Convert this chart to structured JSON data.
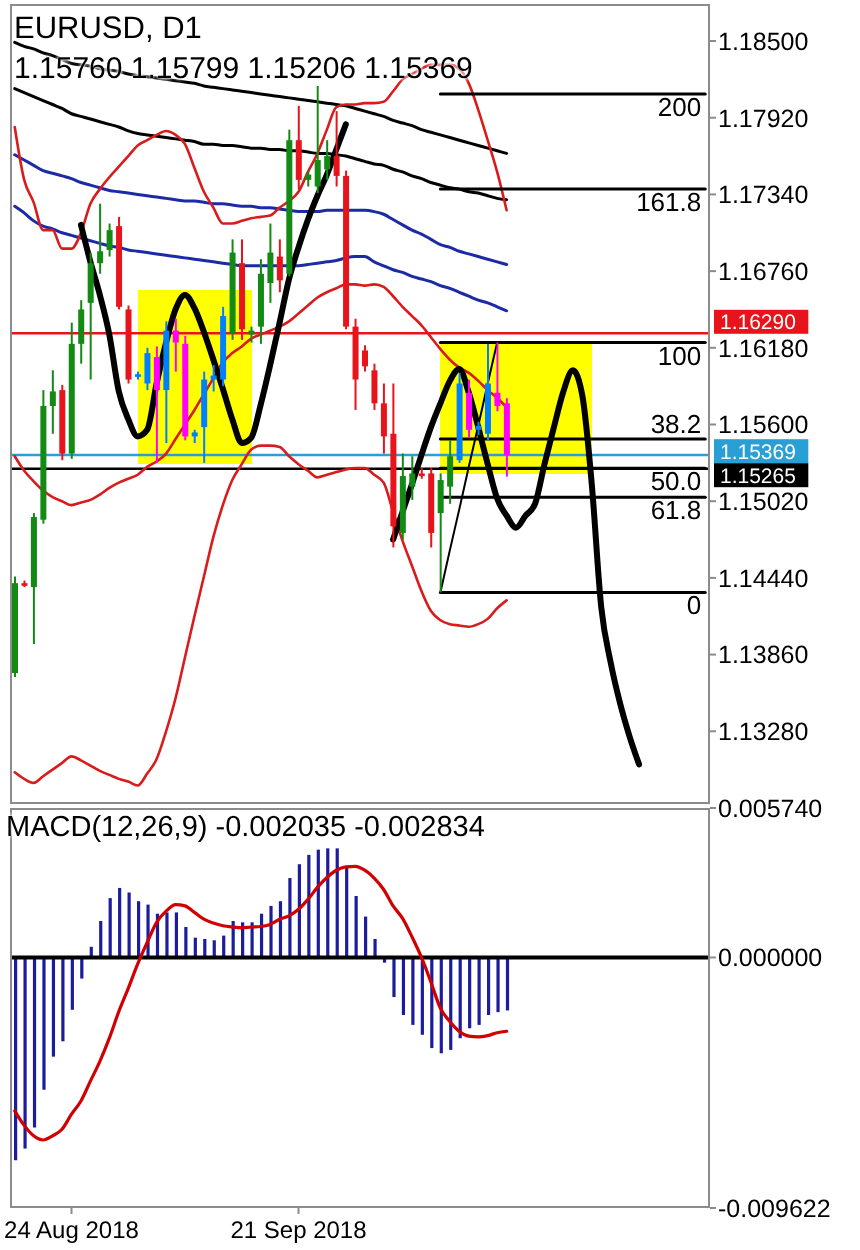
{
  "chart_data": [
    {
      "type": "candlestick",
      "title": "EURUSD, D1",
      "subtitle": "1.15760 1.15799 1.15206 1.15369",
      "categories": [
        null,
        null,
        null,
        null,
        null,
        null,
        null,
        null,
        null,
        null,
        null,
        null,
        null,
        null,
        null,
        null,
        null,
        null,
        null,
        null,
        null,
        null,
        null,
        null,
        null,
        null,
        null,
        null,
        null,
        null,
        null,
        null,
        null,
        null,
        null,
        null,
        null,
        null,
        null,
        null,
        null,
        null,
        null,
        null,
        null,
        null,
        null,
        null,
        null,
        null,
        null,
        null,
        null,
        null,
        null,
        null,
        null,
        null,
        null,
        null,
        null,
        null,
        null,
        null,
        null,
        null,
        null,
        null,
        null,
        null,
        null,
        null,
        null,
        null
      ],
      "ohlc": [
        [
          1.1372,
          1.1445,
          1.1369,
          1.144
        ],
        [
          1.144,
          1.1442,
          1.1437,
          1.1438
        ],
        [
          1.1437,
          1.1493,
          1.1394,
          1.149
        ],
        [
          1.1488,
          1.1586,
          1.1485,
          1.1574
        ],
        [
          1.1574,
          1.1601,
          1.1553,
          1.1585
        ],
        [
          1.1586,
          1.159,
          1.1533,
          1.1538
        ],
        [
          1.1538,
          1.1637,
          1.1534,
          1.1621
        ],
        [
          1.1621,
          1.1654,
          1.1606,
          1.1647
        ],
        [
          1.1652,
          1.169,
          1.1594,
          1.1682
        ],
        [
          1.1682,
          1.1727,
          1.1674,
          1.1691
        ],
        [
          1.1692,
          1.1712,
          1.1687,
          1.1707
        ],
        [
          1.171,
          1.1717,
          1.1647,
          1.1649
        ],
        [
          1.1647,
          1.165,
          1.1591,
          1.1594
        ],
        [
          1.1596,
          1.16,
          1.1594,
          1.1598
        ],
        [
          1.1591,
          1.1618,
          1.1586,
          1.1614
        ],
        [
          1.1611,
          1.1619,
          1.1531,
          1.1586
        ],
        [
          1.1586,
          1.1638,
          1.1546,
          1.1631
        ],
        [
          1.1631,
          1.164,
          1.16,
          1.1622
        ],
        [
          1.1621,
          1.1627,
          1.1548,
          1.1551
        ],
        [
          1.1551,
          1.1556,
          1.1546,
          1.1554
        ],
        [
          1.1558,
          1.16,
          1.1531,
          1.1594
        ],
        [
          1.1594,
          1.1605,
          1.1585,
          1.1597
        ],
        [
          1.1594,
          1.1649,
          1.1589,
          1.1642
        ],
        [
          1.1629,
          1.17,
          1.1624,
          1.169
        ],
        [
          1.1682,
          1.17,
          1.1624,
          1.1632
        ],
        [
          1.1628,
          1.1634,
          1.1622,
          1.1631
        ],
        [
          1.1634,
          1.1685,
          1.1621,
          1.1674
        ],
        [
          1.1667,
          1.1712,
          1.1652,
          1.169
        ],
        [
          1.1687,
          1.17,
          1.166,
          1.1669
        ],
        [
          1.1674,
          1.1783,
          1.1672,
          1.1775
        ],
        [
          1.1775,
          1.1801,
          1.1738,
          1.1745
        ],
        [
          1.1745,
          1.1752,
          1.174,
          1.1749
        ],
        [
          1.174,
          1.1816,
          1.1735,
          1.176
        ],
        [
          1.1753,
          1.1775,
          1.1745,
          1.1763
        ],
        [
          1.1763,
          1.1797,
          1.174,
          1.1748
        ],
        [
          1.1748,
          1.1752,
          1.1632,
          1.1634
        ],
        [
          1.1634,
          1.164,
          1.1571,
          1.1594
        ],
        [
          1.1616,
          1.162,
          1.16,
          1.1604
        ],
        [
          1.1601,
          1.1606,
          1.1571,
          1.1576
        ],
        [
          1.1576,
          1.1591,
          1.1538,
          1.1551
        ],
        [
          1.1553,
          1.1591,
          1.1467,
          1.1483
        ],
        [
          1.1478,
          1.1538,
          1.1473,
          1.1521
        ],
        [
          1.1513,
          1.1536,
          1.1503,
          1.1523
        ],
        [
          1.1523,
          1.1527,
          1.1519,
          1.1521
        ],
        [
          1.1523,
          1.1527,
          1.1467,
          1.1478
        ],
        [
          1.1493,
          1.1523,
          1.1433,
          1.1518
        ],
        [
          1.1513,
          1.1548,
          1.15,
          1.1536
        ],
        [
          1.1533,
          1.1599,
          1.1531,
          1.1591
        ],
        [
          1.1584,
          1.1594,
          1.155,
          1.1556
        ],
        [
          1.1556,
          1.1562,
          1.1552,
          1.1559
        ],
        [
          1.1553,
          1.1621,
          1.1548,
          1.1591
        ],
        [
          1.1584,
          1.1622,
          1.157,
          1.1574
        ],
        [
          1.1576,
          1.15799,
          1.15206,
          1.15369
        ],
        null,
        null,
        null,
        null,
        null,
        null,
        null,
        null,
        null,
        null,
        null,
        null,
        null,
        null,
        null,
        null,
        null,
        null,
        null,
        null,
        null
      ],
      "colors": [
        "#138a13",
        "#e8141c",
        "#138a13",
        "#138a13",
        "#138a13",
        "#e8141c",
        "#138a13",
        "#138a13",
        "#138a13",
        "#138a13",
        "#138a13",
        "#e8141c",
        "#e8141c",
        "#0080ff",
        "#0080ff",
        "#ff00ff",
        "#0080ff",
        "#ff00ff",
        "#ff00ff",
        "#0080ff",
        "#0080ff",
        "#0080ff",
        "#0080ff",
        "#138a13",
        "#e8141c",
        "#138a13",
        "#138a13",
        "#138a13",
        "#e8141c",
        "#138a13",
        "#e8141c",
        "#138a13",
        "#138a13",
        "#138a13",
        "#e8141c",
        "#e8141c",
        "#e8141c",
        "#e8141c",
        "#e8141c",
        "#e8141c",
        "#e8141c",
        "#138a13",
        "#138a13",
        "#e8141c",
        "#e8141c",
        "#138a13",
        "#138a13",
        "#0080ff",
        "#ff00ff",
        "#0080ff",
        "#0080ff",
        "#ff00ff",
        "#ff00ff",
        null,
        null,
        null,
        null,
        null,
        null,
        null,
        null,
        null,
        null,
        null,
        null,
        null,
        null,
        null,
        null,
        null,
        null,
        null,
        null,
        null
      ],
      "ylim": [
        1.1273,
        1.1878
      ],
      "yticks": [
        {
          "value": 1.185,
          "label": "1.18500"
        },
        {
          "value": 1.1792,
          "label": "1.17920"
        },
        {
          "value": 1.1734,
          "label": "1.17340"
        },
        {
          "value": 1.1676,
          "label": "1.16760"
        },
        {
          "value": 1.1618,
          "label": "1.16180"
        },
        {
          "value": 1.156,
          "label": "1.15600"
        },
        {
          "value": 1.1502,
          "label": "1.15020"
        },
        {
          "value": 1.1444,
          "label": "1.14440"
        },
        {
          "value": 1.1386,
          "label": "1.13860"
        },
        {
          "value": 1.1328,
          "label": "1.13280"
        }
      ],
      "ref_lines": [
        {
          "axis": "y",
          "value": 1.1629,
          "label": "1.16290",
          "color": "#e8141c"
        },
        {
          "axis": "y",
          "value": 1.15369,
          "label": "1.15369",
          "color": "#2a9fd6"
        },
        {
          "axis": "y",
          "value": 1.15265,
          "label": "1.15265",
          "color": "#000000"
        }
      ],
      "series": [
        {
          "type": "line",
          "color": "#000000",
          "values": [
            1.1849,
            1.1846,
            1.1844,
            1.1841,
            1.1839,
            1.1836,
            1.1833,
            1.1832,
            1.1831,
            1.1829,
            1.1828,
            1.1827,
            1.1825,
            1.1824,
            1.1823,
            1.1822,
            1.1821,
            1.182,
            1.1819,
            1.1818,
            1.1816,
            1.1815,
            1.1814,
            1.1813,
            1.1812,
            1.1811,
            1.181,
            1.1809,
            1.1808,
            1.1807,
            1.1806,
            1.1805,
            1.1804,
            1.1803,
            1.1802,
            1.1801,
            1.1799,
            1.1797,
            1.1795,
            1.1793,
            1.179,
            1.1788,
            1.1786,
            1.1783,
            1.1781,
            1.1779,
            1.1777,
            1.1775,
            1.1773,
            1.1771,
            1.1769,
            1.1767,
            1.1765,
            null,
            null,
            null,
            null,
            null,
            null,
            null,
            null,
            null,
            null,
            null,
            null,
            null,
            null,
            null,
            null,
            null,
            null,
            null,
            null,
            null
          ]
        },
        {
          "type": "line",
          "color": "#000000",
          "values": [
            1.1814,
            1.1811,
            1.1808,
            1.1805,
            1.1802,
            1.1799,
            1.1795,
            1.1793,
            1.1791,
            1.1789,
            1.1787,
            1.1785,
            1.1782,
            1.178,
            1.1779,
            1.1778,
            1.1777,
            1.1776,
            1.1775,
            1.1774,
            1.1772,
            1.1772,
            1.1771,
            1.1771,
            1.177,
            1.1769,
            1.1769,
            1.1768,
            1.1768,
            1.1767,
            1.1767,
            1.1766,
            1.1765,
            1.1765,
            1.1764,
            1.1763,
            1.1761,
            1.1759,
            1.1757,
            1.1756,
            1.1753,
            1.1751,
            1.1748,
            1.1746,
            1.1743,
            1.1741,
            1.1739,
            1.1738,
            1.1736,
            1.1735,
            1.1733,
            1.1731,
            1.173,
            null,
            null,
            null,
            null,
            null,
            null,
            null,
            null,
            null,
            null,
            null,
            null,
            null,
            null,
            null,
            null,
            null,
            null,
            null,
            null,
            null
          ]
        },
        {
          "type": "line",
          "color": "#1c2aa6",
          "values": [
            1.1764,
            1.176,
            1.1756,
            1.1752,
            1.175,
            1.1748,
            1.1746,
            1.1743,
            1.1741,
            1.1739,
            1.1737,
            1.1736,
            1.1735,
            1.1734,
            1.1733,
            1.1732,
            1.1731,
            1.173,
            1.1729,
            1.1729,
            1.1728,
            1.1727,
            1.1727,
            1.1726,
            1.1725,
            1.1725,
            1.1724,
            1.1724,
            1.1723,
            1.1722,
            1.1721,
            1.1721,
            1.1721,
            1.1722,
            1.1722,
            1.1722,
            1.1722,
            1.1722,
            1.1721,
            1.1719,
            1.1715,
            1.1711,
            1.1707,
            1.1704,
            1.17,
            1.1696,
            1.1694,
            1.1691,
            1.1689,
            1.1687,
            1.1685,
            1.1683,
            1.1681,
            null,
            null,
            null,
            null,
            null,
            null,
            null,
            null,
            null,
            null,
            null,
            null,
            null,
            null,
            null,
            null,
            null,
            null,
            null,
            null,
            null
          ]
        },
        {
          "type": "line",
          "color": "#1c2aa6",
          "values": [
            1.1725,
            1.172,
            1.1714,
            1.171,
            1.1708,
            1.1705,
            1.1703,
            1.1701,
            1.1699,
            1.1697,
            1.1695,
            1.1694,
            1.1692,
            1.1691,
            1.169,
            1.1689,
            1.1688,
            1.1687,
            1.1686,
            1.1685,
            1.1684,
            1.1683,
            1.1682,
            1.1681,
            1.168,
            1.168,
            1.168,
            1.168,
            1.168,
            1.168,
            1.168,
            1.1681,
            1.1682,
            1.1683,
            1.1684,
            1.1686,
            1.1687,
            1.1687,
            1.1683,
            1.168,
            1.1677,
            1.1675,
            1.1672,
            1.167,
            1.1668,
            1.1665,
            1.1663,
            1.166,
            1.1657,
            1.1654,
            1.1652,
            1.1649,
            1.1646,
            null,
            null,
            null,
            null,
            null,
            null,
            null,
            null,
            null,
            null,
            null,
            null,
            null,
            null,
            null,
            null,
            null,
            null,
            null,
            null,
            null
          ]
        },
        {
          "type": "line",
          "color": "#d81b1b",
          "values": [
            1.1785,
            1.1745,
            1.1728,
            1.1707,
            1.1707,
            1.1693,
            1.1693,
            1.1705,
            1.1727,
            1.1738,
            1.1747,
            1.1755,
            1.1763,
            1.1771,
            1.1775,
            1.1779,
            1.1782,
            1.1779,
            1.1772,
            1.1754,
            1.1736,
            1.1724,
            1.1712,
            1.1712,
            1.1714,
            1.1716,
            1.1717,
            1.1718,
            1.1724,
            1.1729,
            1.1736,
            1.1751,
            1.1765,
            1.1783,
            1.18,
            1.1802,
            1.1802,
            1.1803,
            1.1803,
            1.1804,
            1.1812,
            1.1821,
            1.1825,
            1.1829,
            1.1832,
            1.1832,
            1.1832,
            1.1829,
            1.1818,
            1.1798,
            1.1775,
            1.1751,
            1.1722,
            null,
            null,
            null,
            null,
            null,
            null,
            null,
            null,
            null,
            null,
            null,
            null,
            null,
            null,
            null,
            null,
            null,
            null,
            null,
            null,
            null
          ]
        },
        {
          "type": "line",
          "color": "#d81b1b",
          "values": [
            1.1536,
            1.1525,
            1.1517,
            1.151,
            1.1505,
            1.1502,
            1.1499,
            1.1501,
            1.1503,
            1.1507,
            1.1512,
            1.1516,
            1.1519,
            1.1522,
            1.1528,
            1.1532,
            1.1538,
            1.1549,
            1.156,
            1.1571,
            1.1583,
            1.1595,
            1.1607,
            1.1614,
            1.1619,
            1.1625,
            1.1628,
            1.1631,
            1.1634,
            1.1638,
            1.1644,
            1.165,
            1.1656,
            1.166,
            1.1663,
            1.1666,
            1.1666,
            1.1665,
            1.1666,
            1.1664,
            1.1657,
            1.1649,
            1.1642,
            1.1635,
            1.1626,
            1.1617,
            1.1609,
            1.1603,
            1.1599,
            1.1593,
            1.1586,
            1.158,
            1.1573,
            null,
            null,
            null,
            null,
            null,
            null,
            null,
            null,
            null,
            null,
            null,
            null,
            null,
            null,
            null,
            null,
            null,
            null,
            null,
            null,
            null
          ]
        },
        {
          "type": "line",
          "color": "#d81b1b",
          "values": [
            1.1297,
            1.1292,
            1.1289,
            1.1294,
            1.1299,
            1.1304,
            1.1309,
            1.1306,
            1.1302,
            1.1298,
            1.1295,
            1.1292,
            1.129,
            1.1287,
            1.1296,
            1.1307,
            1.1328,
            1.1353,
            1.1384,
            1.1415,
            1.1445,
            1.1475,
            1.1499,
            1.1518,
            1.153,
            1.1541,
            1.1544,
            1.1544,
            1.1543,
            1.1536,
            1.153,
            1.1525,
            1.152,
            1.1522,
            1.1524,
            1.1526,
            1.1527,
            1.1527,
            1.1522,
            1.1516,
            1.1494,
            1.1472,
            1.1453,
            1.1434,
            1.1419,
            1.1412,
            1.1409,
            1.1408,
            1.1407,
            1.1409,
            1.1413,
            1.1421,
            1.1427,
            null,
            null,
            null,
            null,
            null,
            null,
            null,
            null,
            null,
            null,
            null,
            null,
            null,
            null,
            null,
            null,
            null,
            null,
            null,
            null,
            null
          ]
        },
        {
          "type": "line",
          "name": "200",
          "color": "#000000",
          "values": [
            null,
            null,
            null,
            null,
            null,
            null,
            null,
            null,
            null,
            null,
            null,
            null,
            null,
            null,
            null,
            null,
            null,
            null,
            null,
            null,
            null,
            null,
            null,
            null,
            null,
            null,
            null,
            null,
            null,
            null,
            null,
            null,
            null,
            null,
            null,
            null,
            null,
            null,
            null,
            null,
            null,
            null,
            null,
            null,
            null,
            1.181,
            1.181,
            1.181,
            1.181,
            1.181,
            1.181,
            1.181,
            1.181,
            1.181,
            1.181,
            1.181,
            1.181,
            1.181,
            1.181,
            1.181,
            1.181,
            1.181,
            1.181,
            1.181,
            1.181,
            1.181,
            1.181,
            1.181,
            1.181,
            1.181,
            1.181,
            1.181,
            1.181,
            1.181
          ]
        },
        {
          "type": "line",
          "name": "161.8",
          "color": "#000000",
          "values": [
            null,
            null,
            null,
            null,
            null,
            null,
            null,
            null,
            null,
            null,
            null,
            null,
            null,
            null,
            null,
            null,
            null,
            null,
            null,
            null,
            null,
            null,
            null,
            null,
            null,
            null,
            null,
            null,
            null,
            null,
            null,
            null,
            null,
            null,
            null,
            null,
            null,
            null,
            null,
            null,
            null,
            null,
            null,
            null,
            null,
            1.1738,
            1.1738,
            1.1738,
            1.1738,
            1.1738,
            1.1738,
            1.1738,
            1.1738,
            1.1738,
            1.1738,
            1.1738,
            1.1738,
            1.1738,
            1.1738,
            1.1738,
            1.1738,
            1.1738,
            1.1738,
            1.1738,
            1.1738,
            1.1738,
            1.1738,
            1.1738,
            1.1738,
            1.1738,
            1.1738,
            1.1738,
            1.1738,
            1.1738
          ]
        },
        {
          "type": "line",
          "name": "100",
          "color": "#000000",
          "values": [
            null,
            null,
            null,
            null,
            null,
            null,
            null,
            null,
            null,
            null,
            null,
            null,
            null,
            null,
            null,
            null,
            null,
            null,
            null,
            null,
            null,
            null,
            null,
            null,
            null,
            null,
            null,
            null,
            null,
            null,
            null,
            null,
            null,
            null,
            null,
            null,
            null,
            null,
            null,
            null,
            null,
            null,
            null,
            null,
            null,
            1.1622,
            1.1622,
            1.1622,
            1.1622,
            1.1622,
            1.1622,
            1.1622,
            1.1622,
            1.1622,
            1.1622,
            1.1622,
            1.1622,
            1.1622,
            1.1622,
            1.1622,
            1.1622,
            1.1622,
            1.1622,
            1.1622,
            1.1622,
            1.1622,
            1.1622,
            1.1622,
            1.1622,
            1.1622,
            1.1622,
            1.1622,
            1.1622,
            1.1622
          ]
        },
        {
          "type": "line",
          "name": "38.2",
          "color": "#000000",
          "values": [
            null,
            null,
            null,
            null,
            null,
            null,
            null,
            null,
            null,
            null,
            null,
            null,
            null,
            null,
            null,
            null,
            null,
            null,
            null,
            null,
            null,
            null,
            null,
            null,
            null,
            null,
            null,
            null,
            null,
            null,
            null,
            null,
            null,
            null,
            null,
            null,
            null,
            null,
            null,
            null,
            null,
            null,
            null,
            null,
            null,
            1.1549,
            1.1549,
            1.1549,
            1.1549,
            1.1549,
            1.1549,
            1.1549,
            1.1549,
            1.1549,
            1.1549,
            1.1549,
            1.1549,
            1.1549,
            1.1549,
            1.1549,
            1.1549,
            1.1549,
            1.1549,
            1.1549,
            1.1549,
            1.1549,
            1.1549,
            1.1549,
            1.1549,
            1.1549,
            1.1549,
            1.1549,
            1.1549,
            1.1549
          ]
        },
        {
          "type": "line",
          "name": "50.0",
          "color": "#000000",
          "values": [
            null,
            null,
            null,
            null,
            null,
            null,
            null,
            null,
            null,
            null,
            null,
            null,
            null,
            null,
            null,
            null,
            null,
            null,
            null,
            null,
            null,
            null,
            null,
            null,
            null,
            null,
            null,
            null,
            null,
            null,
            null,
            null,
            null,
            null,
            null,
            null,
            null,
            null,
            null,
            null,
            null,
            null,
            null,
            null,
            null,
            1.1527,
            1.1527,
            1.1527,
            1.1527,
            1.1527,
            1.1527,
            1.1527,
            1.1527,
            1.1527,
            1.1527,
            1.1527,
            1.1527,
            1.1527,
            1.1527,
            1.1527,
            1.1527,
            1.1527,
            1.1527,
            1.1527,
            1.1527,
            1.1527,
            1.1527,
            1.1527,
            1.1527,
            1.1527,
            1.1527,
            1.1527,
            1.1527,
            1.1527
          ]
        },
        {
          "type": "line",
          "name": "61.8",
          "color": "#000000",
          "values": [
            null,
            null,
            null,
            null,
            null,
            null,
            null,
            null,
            null,
            null,
            null,
            null,
            null,
            null,
            null,
            null,
            null,
            null,
            null,
            null,
            null,
            null,
            null,
            null,
            null,
            null,
            null,
            null,
            null,
            null,
            null,
            null,
            null,
            null,
            null,
            null,
            null,
            null,
            null,
            null,
            null,
            null,
            null,
            null,
            null,
            1.1505,
            1.1505,
            1.1505,
            1.1505,
            1.1505,
            1.1505,
            1.1505,
            1.1505,
            1.1505,
            1.1505,
            1.1505,
            1.1505,
            1.1505,
            1.1505,
            1.1505,
            1.1505,
            1.1505,
            1.1505,
            1.1505,
            1.1505,
            1.1505,
            1.1505,
            1.1505,
            1.1505,
            1.1505,
            1.1505,
            1.1505,
            1.1505,
            1.1505
          ]
        },
        {
          "type": "line",
          "name": "0",
          "color": "#000000",
          "values": [
            null,
            null,
            null,
            null,
            null,
            null,
            null,
            null,
            null,
            null,
            null,
            null,
            null,
            null,
            null,
            null,
            null,
            null,
            null,
            null,
            null,
            null,
            null,
            null,
            null,
            null,
            null,
            null,
            null,
            null,
            null,
            null,
            null,
            null,
            null,
            null,
            null,
            null,
            null,
            null,
            null,
            null,
            null,
            null,
            null,
            1.1433,
            1.1433,
            1.1433,
            1.1433,
            1.1433,
            1.1433,
            1.1433,
            1.1433,
            1.1433,
            1.1433,
            1.1433,
            1.1433,
            1.1433,
            1.1433,
            1.1433,
            1.1433,
            1.1433,
            1.1433,
            1.1433,
            1.1433,
            1.1433,
            1.1433,
            1.1433,
            1.1433,
            1.1433,
            1.1433,
            1.1433,
            1.1433,
            1.1433
          ]
        },
        {
          "type": "line",
          "color": "#000000",
          "values": [
            null,
            null,
            null,
            null,
            null,
            null,
            null,
            null,
            null,
            null,
            null,
            null,
            null,
            null,
            null,
            null,
            null,
            null,
            null,
            null,
            null,
            null,
            null,
            null,
            null,
            null,
            null,
            null,
            null,
            null,
            null,
            null,
            null,
            null,
            null,
            null,
            null,
            null,
            null,
            null,
            null,
            null,
            null,
            null,
            null,
            1.1433,
            1.1465,
            1.1496,
            1.1528,
            1.1559,
            1.1591,
            1.1622,
            null,
            null,
            null,
            null,
            null,
            null,
            null,
            null,
            null,
            null,
            null,
            null,
            null,
            null,
            null,
            null,
            null,
            null,
            null,
            null,
            null,
            null
          ]
        },
        {
          "type": "line",
          "color": "#000000",
          "values": [
            null,
            null,
            null,
            null,
            null,
            null,
            null,
            1.1711,
            1.1683,
            1.1658,
            1.1628,
            1.1585,
            1.1564,
            1.1551,
            1.1556,
            1.1591,
            1.1622,
            1.1647,
            1.1658,
            1.1648,
            1.163,
            1.1609,
            1.1587,
            1.1564,
            1.1546,
            1.155,
            1.1575,
            1.1605,
            1.1637,
            1.167,
            1.1694,
            1.1715,
            1.1733,
            1.1749,
            1.1768,
            1.1787,
            null,
            null,
            null,
            null,
            null,
            null,
            null,
            null,
            null,
            null,
            null,
            null,
            null,
            null,
            null,
            null,
            null,
            null,
            null,
            null,
            null,
            null,
            null,
            null,
            null,
            null,
            null,
            null,
            null,
            null,
            null,
            null,
            null,
            null,
            null,
            null,
            null,
            null
          ]
        },
        {
          "type": "line",
          "color": "#000000",
          "values": [
            null,
            null,
            null,
            null,
            null,
            null,
            null,
            null,
            null,
            null,
            null,
            null,
            null,
            null,
            null,
            null,
            null,
            null,
            null,
            null,
            null,
            null,
            null,
            null,
            null,
            null,
            null,
            null,
            null,
            null,
            null,
            null,
            null,
            null,
            null,
            null,
            null,
            null,
            null,
            null,
            1.1473,
            1.1494,
            1.1515,
            1.1537,
            1.1558,
            1.1576,
            1.1593,
            1.1602,
            1.1584,
            1.1558,
            1.153,
            1.1504,
            1.1491,
            1.1482,
            1.1491,
            1.15,
            1.153,
            1.1558,
            1.1585,
            1.1601,
            1.1582,
            1.1515,
            1.1422,
            1.138,
            1.1349,
            1.1324,
            1.1303,
            null,
            null,
            null,
            null,
            null,
            null,
            null
          ]
        }
      ]
    },
    {
      "type": "bar",
      "title": "MACD(12,26,9) -0.002035 -0.002834",
      "categories": [
        null,
        null,
        null,
        null,
        null,
        null,
        "24 Aug 2018",
        null,
        null,
        null,
        null,
        null,
        null,
        null,
        null,
        null,
        null,
        null,
        null,
        null,
        null,
        null,
        null,
        null,
        null,
        null,
        null,
        null,
        null,
        null,
        "21 Sep 2018",
        null,
        null,
        null,
        null,
        null,
        null,
        null,
        null,
        null,
        null,
        null,
        null,
        null,
        null,
        null,
        null,
        null,
        null,
        null,
        null,
        null,
        null,
        null,
        null,
        null,
        null,
        null,
        null,
        null,
        null,
        null,
        null,
        null,
        null,
        null,
        null,
        null,
        null,
        null,
        null,
        null,
        null,
        null
      ],
      "ylim": [
        -0.009622,
        0.00574
      ],
      "yticks": [
        {
          "value": 0.00574,
          "label": "0.005740"
        },
        {
          "value": 0,
          "label": "0.000000"
        },
        {
          "value": -0.009622,
          "label": "-0.009622"
        }
      ],
      "ref_lines": [
        {
          "axis": "y",
          "value": 0,
          "color": "#000000"
        }
      ],
      "series": [
        {
          "type": "bar",
          "color": "#1c1c9c",
          "values": [
            -0.00779,
            -0.00734,
            -0.00653,
            -0.00508,
            -0.00381,
            -0.00322,
            -0.00201,
            -0.00081,
            0.00041,
            0.0014,
            0.00228,
            0.00267,
            0.00249,
            0.00216,
            0.00203,
            0.00168,
            0.00173,
            0.00173,
            0.00117,
            0.00076,
            0.00071,
            0.00066,
            0.00084,
            0.0014,
            0.00135,
            0.00135,
            0.00168,
            0.00198,
            0.00216,
            0.00305,
            0.00358,
            0.00394,
            0.00414,
            0.00419,
            0.00419,
            0.0035,
            0.00236,
            0.00157,
            0.00071,
            -0.0002,
            -0.00152,
            -0.00221,
            -0.00259,
            -0.00297,
            -0.00348,
            -0.00368,
            -0.00355,
            -0.0031,
            -0.00272,
            -0.00259,
            -0.00221,
            -0.0021,
            -0.002035,
            null,
            null,
            null,
            null,
            null,
            null,
            null,
            null,
            null,
            null,
            null,
            null,
            null,
            null,
            null,
            null,
            null,
            null,
            null,
            null,
            null
          ]
        },
        {
          "type": "line",
          "color": "#d10000",
          "values": [
            -0.00589,
            -0.00645,
            -0.00685,
            -0.00701,
            -0.00685,
            -0.0066,
            -0.00602,
            -0.00551,
            -0.00475,
            -0.00399,
            -0.0031,
            -0.00208,
            -0.00119,
            -0.00025,
            0.00058,
            0.00135,
            0.00178,
            0.00203,
            0.00198,
            0.00173,
            0.00147,
            0.00132,
            0.00122,
            0.00117,
            0.00114,
            0.00117,
            0.00119,
            0.00127,
            0.00147,
            0.0016,
            0.00185,
            0.00223,
            0.00269,
            0.00307,
            0.00335,
            0.00348,
            0.0035,
            0.00335,
            0.00305,
            0.00261,
            0.00198,
            0.0015,
            0.00079,
            0,
            -0.00095,
            -0.00195,
            -0.00246,
            -0.00284,
            -0.00302,
            -0.00305,
            -0.003,
            -0.00289,
            -0.002834,
            null,
            null,
            null,
            null,
            null,
            null,
            null,
            null,
            null,
            null,
            null,
            null,
            null,
            null,
            null,
            null,
            null,
            null,
            null,
            null,
            null
          ]
        }
      ]
    }
  ]
}
